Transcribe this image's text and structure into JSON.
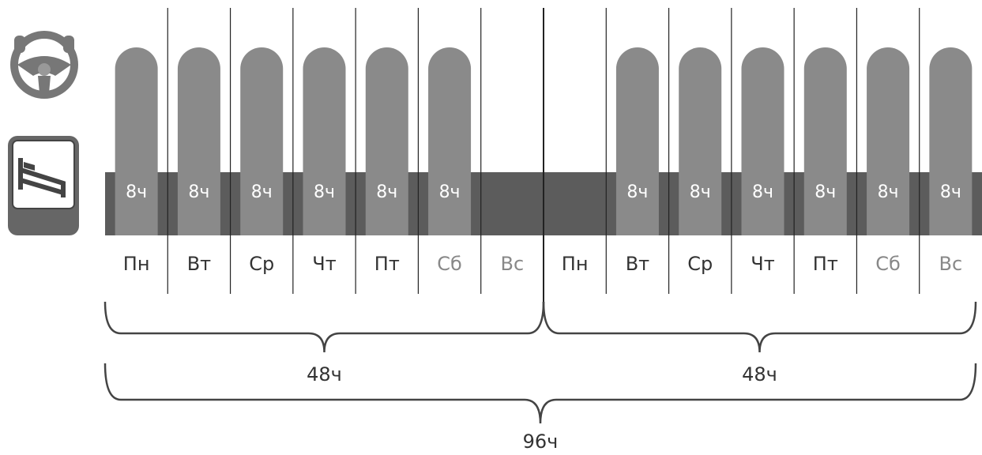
{
  "days": [
    {
      "label": "Пн",
      "hours": "8ч"
    },
    {
      "label": "Вт",
      "hours": "8ч"
    },
    {
      "label": "Ср",
      "hours": "8ч"
    },
    {
      "label": "Чт",
      "hours": "8ч"
    },
    {
      "label": "Пт",
      "hours": "8ч"
    },
    {
      "label": "Сб",
      "hours": "8ч"
    },
    {
      "label": "Вс"
    },
    {
      "label": "Пн"
    },
    {
      "label": "Вт",
      "hours": "8ч"
    },
    {
      "label": "Ср",
      "hours": "8ч"
    },
    {
      "label": "Чт",
      "hours": "8ч"
    },
    {
      "label": "Пт",
      "hours": "8ч"
    },
    {
      "label": "Сб",
      "hours": "8ч"
    },
    {
      "label": "Вс",
      "hours": "8ч"
    }
  ],
  "weeks": [
    {
      "total": "48ч"
    },
    {
      "total": "48ч"
    }
  ],
  "total": "96ч"
}
